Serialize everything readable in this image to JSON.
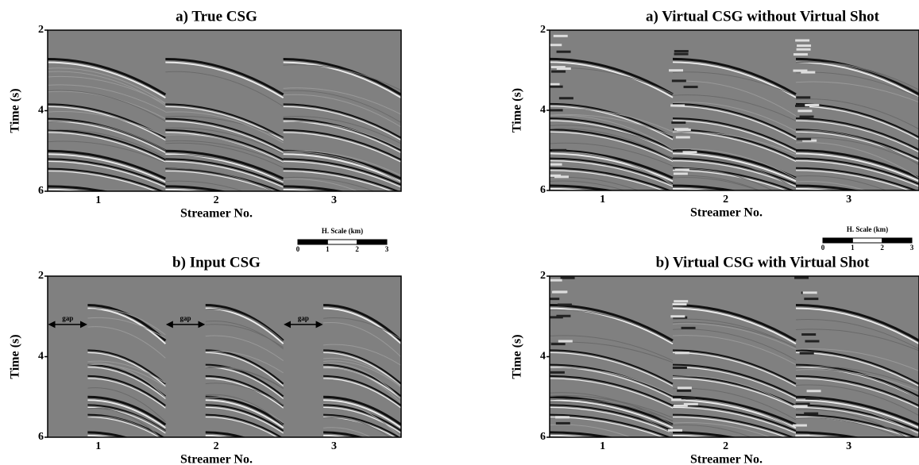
{
  "panels": [
    {
      "title": "a) True CSG",
      "y_label": "Time (s)",
      "x_label": "Streamer No.",
      "y_ticks": [
        2,
        4,
        6
      ],
      "x_ticks": [
        1,
        2,
        3
      ]
    },
    {
      "title": "b) Input CSG",
      "y_label": "Time (s)",
      "x_label": "Streamer No.",
      "y_ticks": [
        2,
        4,
        6
      ],
      "x_ticks": [
        1,
        2,
        3
      ],
      "gap_labels": [
        "gap",
        "gap",
        "gap"
      ]
    },
    {
      "title": "a) Virtual CSG without Virtual Shot",
      "y_label": "Time (s)",
      "x_label": "Streamer No.",
      "y_ticks": [
        2,
        4,
        6
      ],
      "x_ticks": [
        1,
        2,
        3
      ]
    },
    {
      "title": "b) Virtual CSG with Virtual Shot",
      "y_label": "Time (s)",
      "x_label": "Streamer No.",
      "y_ticks": [
        2,
        4,
        6
      ],
      "x_ticks": [
        1,
        2,
        3
      ]
    }
  ],
  "scale_bars": [
    {
      "title": "H. Scale (km)",
      "ticks": [
        0,
        1,
        2,
        3
      ]
    },
    {
      "title": "H. Scale (km)",
      "ticks": [
        0,
        1,
        2,
        3
      ]
    }
  ]
}
